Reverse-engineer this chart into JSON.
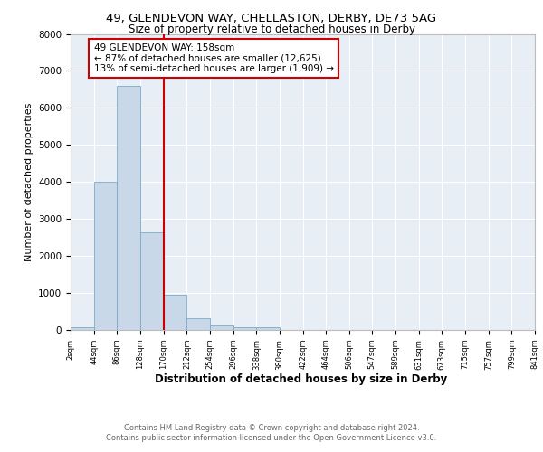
{
  "title1": "49, GLENDEVON WAY, CHELLASTON, DERBY, DE73 5AG",
  "title2": "Size of property relative to detached houses in Derby",
  "xlabel": "Distribution of detached houses by size in Derby",
  "ylabel": "Number of detached properties",
  "bar_color": "#c8d8e8",
  "bar_edge_color": "#7aaac8",
  "background_color": "#e8eef6",
  "grid_color": "#ffffff",
  "vline_color": "#cc0000",
  "vline_x": 170,
  "annotation_line1": "49 GLENDEVON WAY: 158sqm",
  "annotation_line2": "← 87% of detached houses are smaller (12,625)",
  "annotation_line3": "13% of semi-detached houses are larger (1,909) →",
  "footer1": "Contains HM Land Registry data © Crown copyright and database right 2024.",
  "footer2": "Contains public sector information licensed under the Open Government Licence v3.0.",
  "bin_edges": [
    2,
    44,
    86,
    128,
    170,
    212,
    254,
    296,
    338,
    380,
    422,
    464,
    506,
    547,
    589,
    631,
    673,
    715,
    757,
    799,
    841
  ],
  "bar_heights": [
    80,
    4000,
    6600,
    2650,
    950,
    320,
    130,
    80,
    65,
    0,
    0,
    0,
    0,
    0,
    0,
    0,
    0,
    0,
    0,
    0
  ],
  "ylim": [
    0,
    8000
  ],
  "xlim": [
    2,
    841
  ],
  "tick_labels": [
    "2sqm",
    "44sqm",
    "86sqm",
    "128sqm",
    "170sqm",
    "212sqm",
    "254sqm",
    "296sqm",
    "338sqm",
    "380sqm",
    "422sqm",
    "464sqm",
    "506sqm",
    "547sqm",
    "589sqm",
    "631sqm",
    "673sqm",
    "715sqm",
    "757sqm",
    "799sqm",
    "841sqm"
  ]
}
